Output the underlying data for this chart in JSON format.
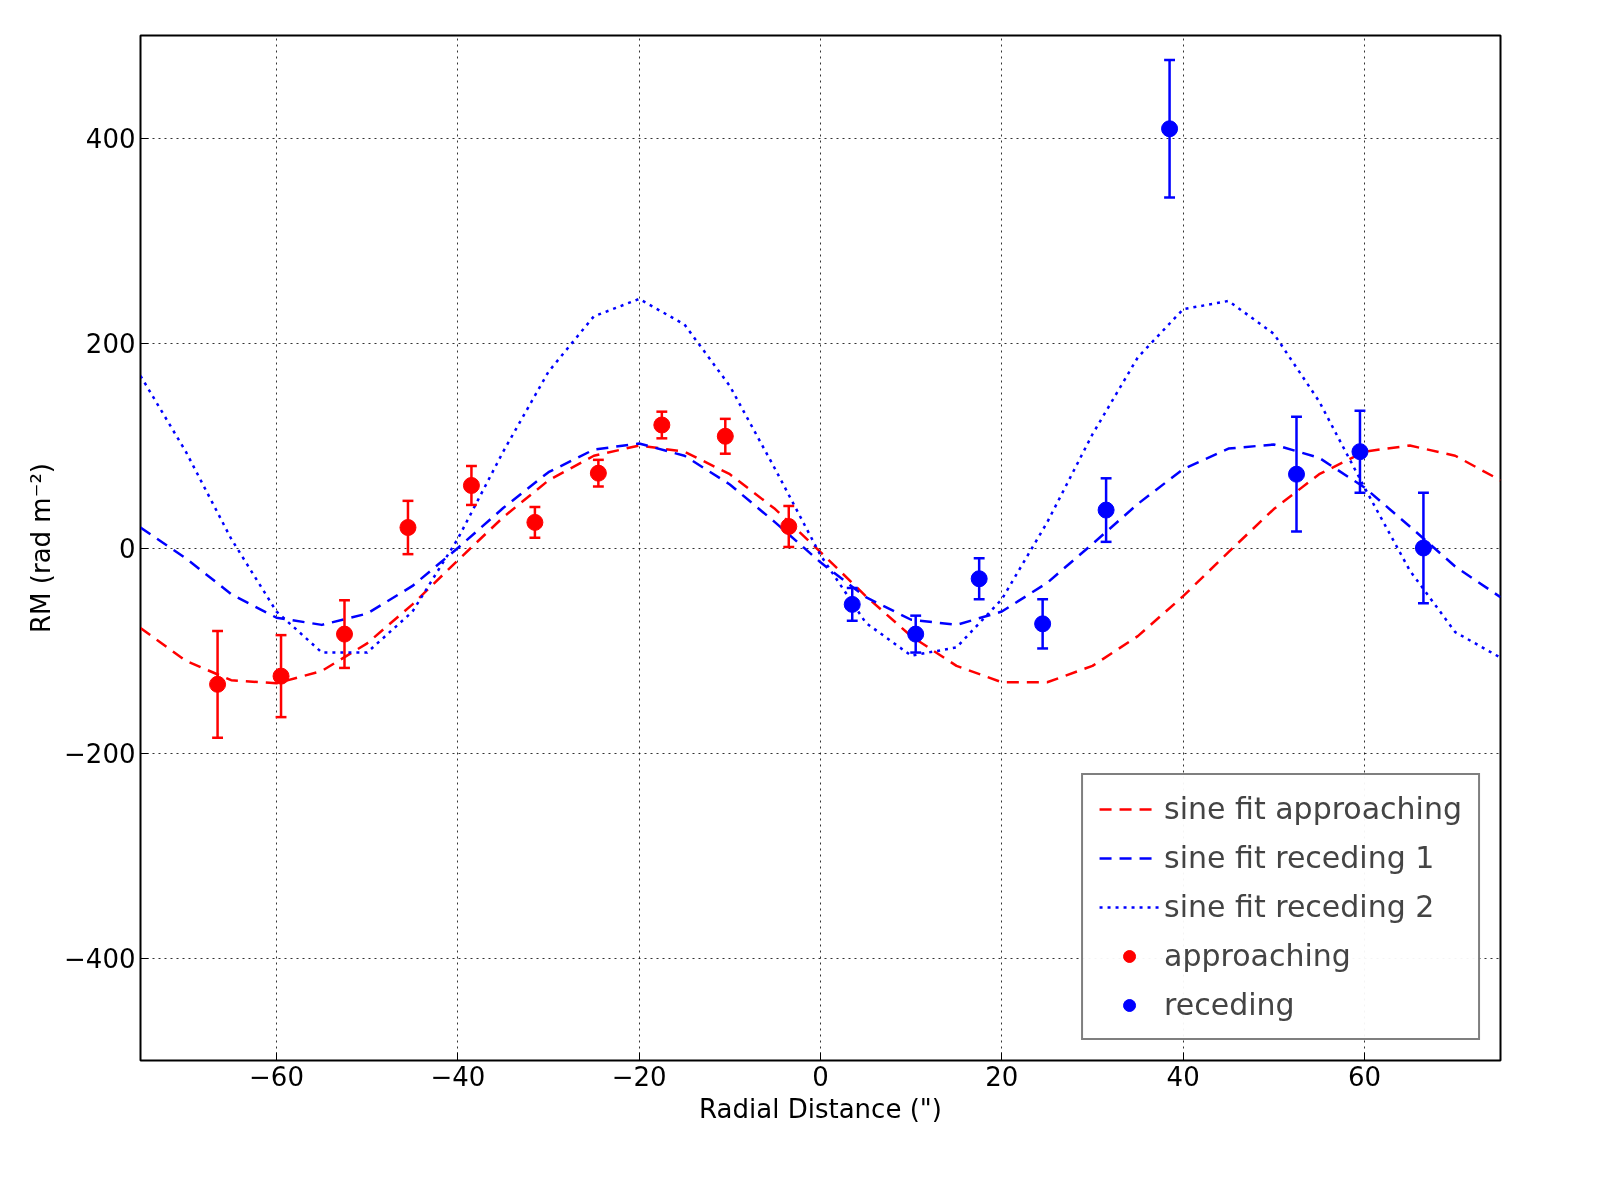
{
  "chart_data": {
    "type": "scatter",
    "xlabel": "Radial Distance (\")",
    "ylabel": "RM (rad m⁻²)",
    "xlim": [
      -75,
      75
    ],
    "ylim": [
      -500,
      500
    ],
    "xticks": [
      {
        "value": -60,
        "label": "−60"
      },
      {
        "value": -40,
        "label": "−40"
      },
      {
        "value": -20,
        "label": "−20"
      },
      0,
      20,
      40,
      60
    ],
    "yticks": [
      {
        "value": -400,
        "label": "−400"
      },
      {
        "value": -200,
        "label": "−200"
      },
      0,
      200,
      400
    ],
    "grid": true,
    "legend": "bottom right",
    "series": [
      {
        "type": "line",
        "name": "sine fit approaching",
        "color": "#ff0000",
        "line_style": "dashed",
        "x": [
          -75,
          -70,
          -65,
          -60,
          -55,
          -50,
          -45,
          -40,
          -35,
          -30,
          -25,
          -20,
          -15,
          -10,
          -5,
          0,
          5,
          10,
          15,
          20,
          25,
          30,
          35,
          40,
          45,
          50,
          55,
          60,
          65,
          70,
          75
        ],
        "values": [
          -78,
          -110,
          -129,
          -132,
          -120,
          -93,
          -55,
          -12,
          30,
          66,
          90,
          100,
          94,
          72,
          38,
          -4,
          -47,
          -86,
          -115,
          -131,
          -131,
          -115,
          -86,
          -47,
          -4,
          38,
          72,
          94,
          100,
          90,
          66
        ]
      },
      {
        "type": "line",
        "name": "sine fit receding 1",
        "color": "#0000ff",
        "line_style": "dashed",
        "x": [
          -75,
          -70,
          -65,
          -60,
          -55,
          -50,
          -45,
          -40,
          -35,
          -30,
          -25,
          -20,
          -15,
          -10,
          -5,
          0,
          5,
          10,
          15,
          20,
          25,
          30,
          35,
          40,
          45,
          50,
          55,
          60,
          65,
          70,
          75
        ],
        "values": [
          20,
          -10,
          -45,
          -68,
          -75,
          -64,
          -37,
          0,
          39,
          74,
          96,
          102,
          90,
          62,
          25,
          -14,
          -48,
          -70,
          -75,
          -62,
          -34,
          4,
          43,
          77,
          97,
          101,
          88,
          59,
          21,
          -18,
          -48
        ]
      },
      {
        "type": "line",
        "name": "sine fit receding 2",
        "color": "#0000ff",
        "line_style": "dotted",
        "x": [
          -75,
          -70,
          -65,
          -60,
          -55,
          -50,
          -45,
          -40,
          -35,
          -30,
          -25,
          -20,
          -15,
          -10,
          -5,
          0,
          5,
          10,
          15,
          20,
          25,
          30,
          35,
          40,
          45,
          50,
          55,
          60,
          65,
          70,
          75
        ],
        "values": [
          168,
          94,
          9,
          -62,
          -102,
          -102,
          -62,
          9,
          94,
          172,
          226,
          243,
          218,
          158,
          77,
          -7,
          -73,
          -105,
          -97,
          -50,
          25,
          111,
          186,
          233,
          241,
          209,
          143,
          59,
          -22,
          -82,
          -107
        ]
      },
      {
        "name": "approaching",
        "color": "#ff0000",
        "marker": "circle",
        "x": [
          -66.5,
          -59.5,
          -52.5,
          -45.5,
          -38.5,
          -31.5,
          -24.5,
          -17.5,
          -10.5,
          -3.5
        ],
        "values": [
          -133,
          -125,
          -84,
          20,
          61,
          25,
          73,
          120,
          109,
          21
        ],
        "errors": [
          52,
          40,
          33,
          26,
          19,
          15,
          13,
          13,
          17,
          20
        ]
      },
      {
        "name": "receding",
        "color": "#0000ff",
        "marker": "circle",
        "x": [
          3.5,
          10.5,
          17.5,
          24.5,
          31.5,
          38.5,
          52.5,
          59.5,
          66.5
        ],
        "values": [
          -55,
          -84,
          -30,
          -74,
          37,
          409,
          72,
          94,
          0
        ],
        "errors": [
          16,
          18,
          20,
          24,
          31,
          67,
          56,
          40,
          54
        ]
      }
    ]
  }
}
